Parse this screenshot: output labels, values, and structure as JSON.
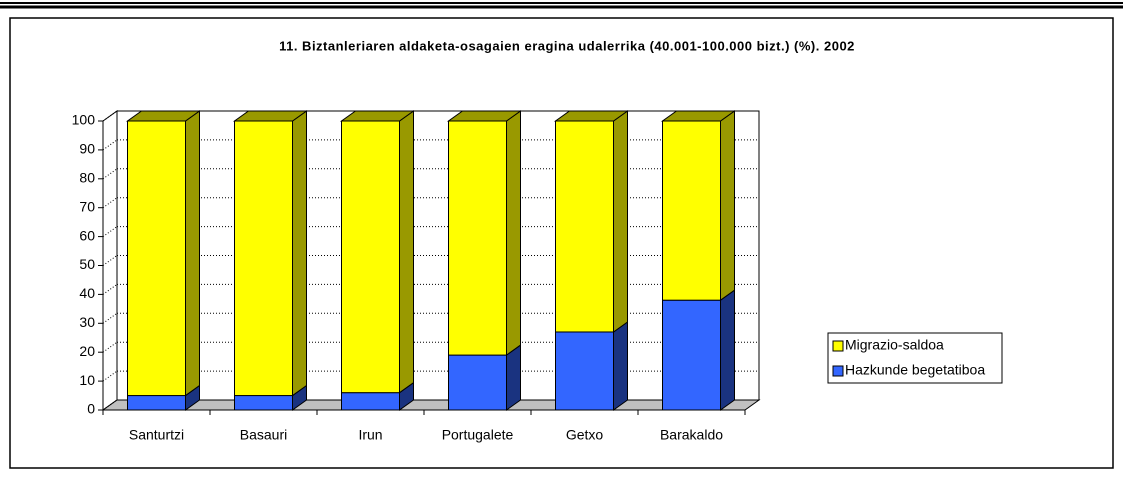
{
  "chart_data": {
    "type": "bar3d_stacked",
    "title": "11. Biztanleriaren aldaketa-osagaien eragina udalerrika (40.001-100.000 bizt.) (%). 2002",
    "categories": [
      "Santurtzi",
      "Basauri",
      "Irun",
      "Portugalete",
      "Getxo",
      "Barakaldo"
    ],
    "series": [
      {
        "name": "Hazkunde begetatiboa",
        "color": "#3366ff",
        "side_color": "#1a3380",
        "values": [
          5,
          5,
          6,
          19,
          27,
          38
        ]
      },
      {
        "name": "Migrazio-saldoa",
        "color": "#ffff00",
        "side_color": "#999900",
        "values": [
          95,
          95,
          94,
          81,
          73,
          62
        ]
      }
    ],
    "ylim": [
      0,
      100
    ],
    "yticks": [
      0,
      10,
      20,
      30,
      40,
      50,
      60,
      70,
      80,
      90,
      100
    ],
    "grid": true,
    "legend": "right"
  }
}
